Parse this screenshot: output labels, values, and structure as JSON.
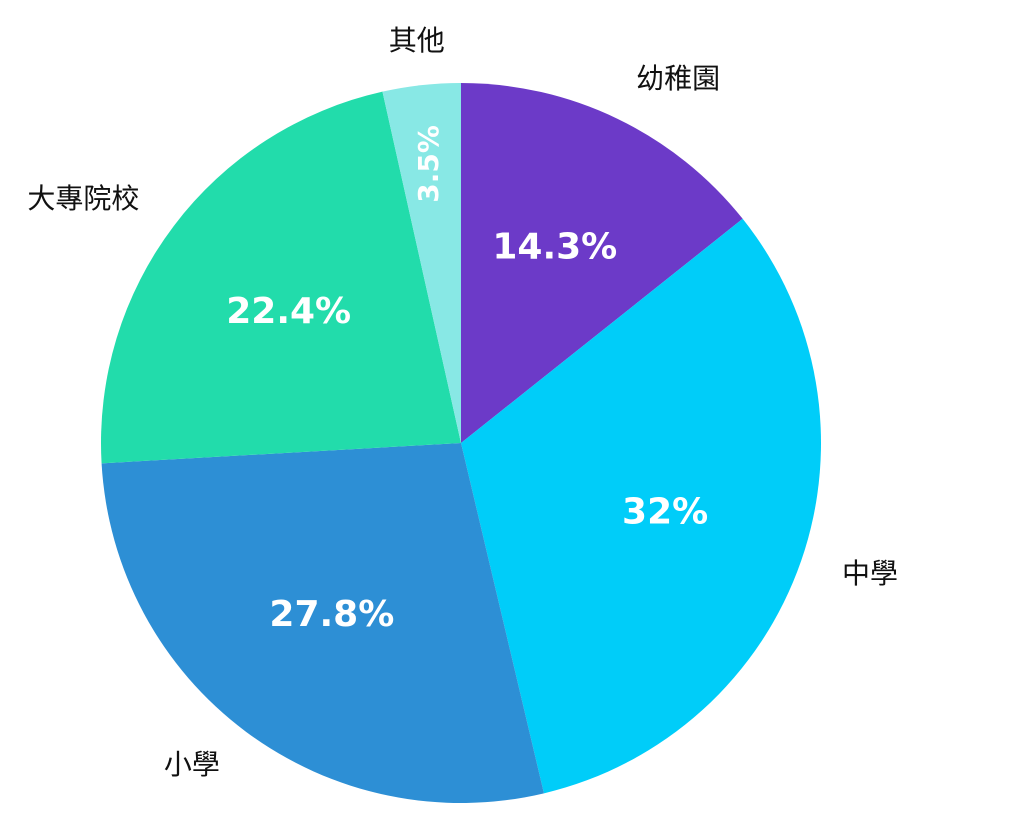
{
  "chart_data": {
    "type": "pie",
    "categories": [
      "幼稚園",
      "中學",
      "小學",
      "大專院校",
      "其他"
    ],
    "values": [
      14.3,
      32,
      27.8,
      22.4,
      3.5
    ],
    "value_labels": [
      "14.3%",
      "32%",
      "27.8%",
      "22.4%",
      "3.5%"
    ],
    "colors": [
      "#6c3ac8",
      "#00cdf9",
      "#2d8fd5",
      "#22dcab",
      "#88e8e5"
    ]
  }
}
